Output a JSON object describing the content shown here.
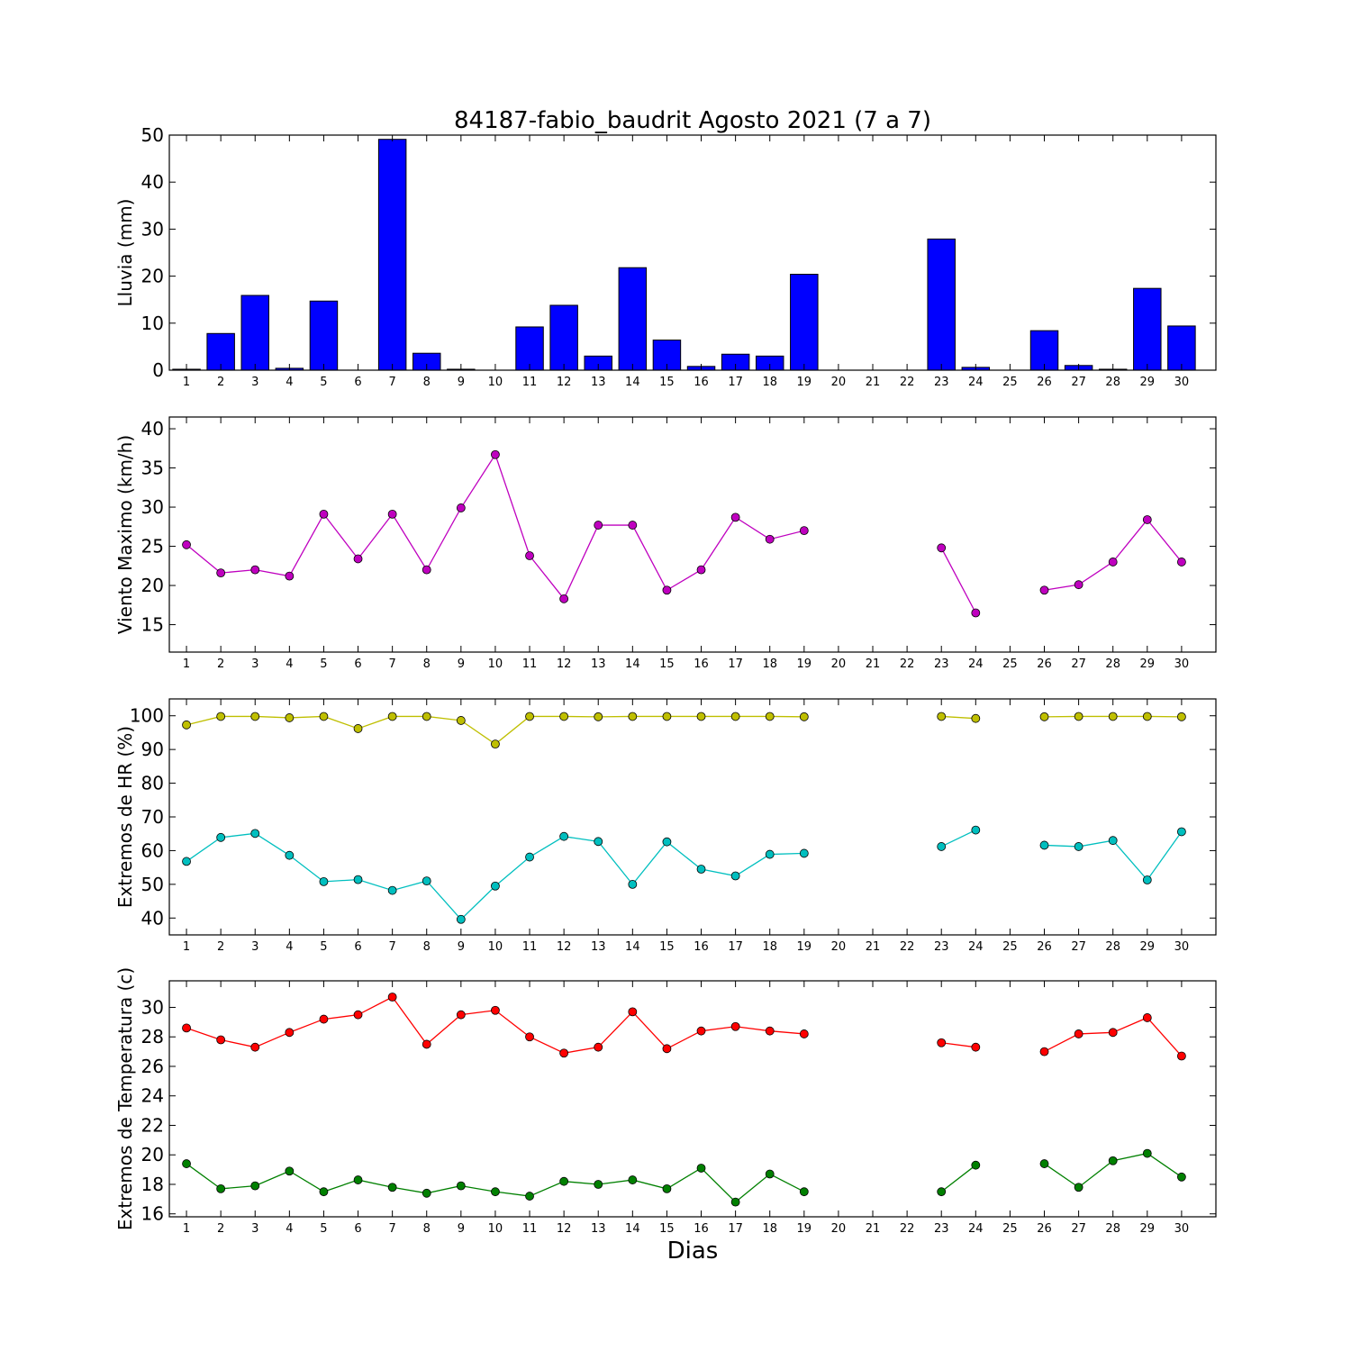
{
  "figure": {
    "title": "84187-fabio_baudrit Agosto 2021  (7 a 7)",
    "xlabel": "Dias"
  },
  "chart_data": [
    {
      "type": "bar",
      "ylabel": "Lluvia (mm)",
      "categories": [
        1,
        2,
        3,
        4,
        5,
        6,
        7,
        8,
        9,
        10,
        11,
        12,
        13,
        14,
        15,
        16,
        17,
        18,
        19,
        20,
        21,
        22,
        23,
        24,
        25,
        26,
        27,
        28,
        29,
        30
      ],
      "ylim": [
        0,
        50
      ],
      "yticks": [
        0,
        10,
        20,
        30,
        40,
        50
      ],
      "series": [
        {
          "color": "#0000ff",
          "values": [
            0.2,
            7.8,
            15.9,
            0.4,
            14.7,
            0,
            49.1,
            3.6,
            0.2,
            0,
            9.2,
            13.8,
            3.0,
            21.8,
            6.4,
            0.8,
            3.4,
            3.0,
            20.4,
            0,
            0,
            0,
            27.9,
            0.6,
            0,
            8.4,
            1.0,
            0.2,
            17.4,
            9.4
          ]
        }
      ]
    },
    {
      "type": "line",
      "ylabel": "Viento Maximo (km/h)",
      "x": [
        1,
        2,
        3,
        4,
        5,
        6,
        7,
        8,
        9,
        10,
        11,
        12,
        13,
        14,
        15,
        16,
        17,
        18,
        19,
        20,
        21,
        22,
        23,
        24,
        25,
        26,
        27,
        28,
        29,
        30
      ],
      "ylim": [
        11.5,
        41.5
      ],
      "yticks": [
        15,
        20,
        25,
        30,
        35,
        40
      ],
      "series": [
        {
          "color": "#bf00bf",
          "values": [
            25.2,
            21.6,
            22.0,
            21.2,
            29.1,
            23.4,
            29.1,
            22.0,
            29.9,
            36.7,
            23.8,
            18.3,
            27.7,
            27.7,
            19.4,
            22.0,
            28.7,
            25.9,
            27.0,
            null,
            null,
            null,
            24.8,
            16.5,
            null,
            19.4,
            20.1,
            23.0,
            28.4,
            23.0
          ]
        }
      ]
    },
    {
      "type": "line",
      "ylabel": "Extremos de HR (%)",
      "x": [
        1,
        2,
        3,
        4,
        5,
        6,
        7,
        8,
        9,
        10,
        11,
        12,
        13,
        14,
        15,
        16,
        17,
        18,
        19,
        20,
        21,
        22,
        23,
        24,
        25,
        26,
        27,
        28,
        29,
        30
      ],
      "ylim": [
        35,
        105
      ],
      "yticks": [
        40,
        50,
        60,
        70,
        80,
        90,
        100
      ],
      "series": [
        {
          "color": "#bfbf00",
          "values": [
            97.3,
            99.8,
            99.8,
            99.4,
            99.8,
            96.2,
            99.8,
            99.8,
            98.6,
            91.6,
            99.8,
            99.8,
            99.7,
            99.8,
            99.8,
            99.8,
            99.8,
            99.8,
            99.7,
            null,
            null,
            null,
            99.8,
            99.2,
            null,
            99.7,
            99.8,
            99.8,
            99.8,
            99.7
          ]
        },
        {
          "color": "#00bfbf",
          "values": [
            56.8,
            63.9,
            65.1,
            58.6,
            50.8,
            51.4,
            48.2,
            51.0,
            39.6,
            49.5,
            58.1,
            64.2,
            62.7,
            50.0,
            62.6,
            54.5,
            52.5,
            58.9,
            59.2,
            null,
            null,
            null,
            61.2,
            66.1,
            null,
            61.6,
            61.2,
            63.0,
            51.3,
            65.6
          ]
        }
      ]
    },
    {
      "type": "line",
      "ylabel": "Extremos de Temperatura (c)",
      "x": [
        1,
        2,
        3,
        4,
        5,
        6,
        7,
        8,
        9,
        10,
        11,
        12,
        13,
        14,
        15,
        16,
        17,
        18,
        19,
        20,
        21,
        22,
        23,
        24,
        25,
        26,
        27,
        28,
        29,
        30
      ],
      "ylim": [
        15.8,
        31.8
      ],
      "yticks": [
        16,
        18,
        20,
        22,
        24,
        26,
        28,
        30
      ],
      "series": [
        {
          "color": "#ff0000",
          "values": [
            28.6,
            27.8,
            27.3,
            28.3,
            29.2,
            29.5,
            30.7,
            27.5,
            29.5,
            29.8,
            28.0,
            26.9,
            27.3,
            29.7,
            27.2,
            28.4,
            28.7,
            28.4,
            28.2,
            null,
            null,
            null,
            27.6,
            27.3,
            null,
            27.0,
            28.2,
            28.3,
            29.3,
            26.7
          ]
        },
        {
          "color": "#008000",
          "values": [
            19.4,
            17.7,
            17.9,
            18.9,
            17.5,
            18.3,
            17.8,
            17.4,
            17.9,
            17.5,
            17.2,
            18.2,
            18.0,
            18.3,
            17.7,
            19.1,
            16.8,
            18.7,
            17.5,
            null,
            null,
            null,
            17.5,
            19.3,
            null,
            19.4,
            17.8,
            19.6,
            20.1,
            18.5
          ]
        }
      ]
    }
  ]
}
